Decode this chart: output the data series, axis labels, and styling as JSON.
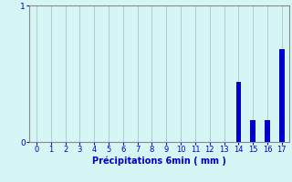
{
  "categories": [
    0,
    1,
    2,
    3,
    4,
    5,
    6,
    7,
    8,
    9,
    10,
    11,
    12,
    13,
    14,
    15,
    16,
    17
  ],
  "values": [
    0,
    0,
    0,
    0,
    0,
    0,
    0,
    0,
    0,
    0,
    0,
    0,
    0,
    0,
    0.44,
    0.16,
    0.16,
    0.68
  ],
  "bar_color": "#0000cc",
  "bg_color": "#d6f5f5",
  "grid_color": "#aacccc",
  "axis_label_color": "#0000cc",
  "tick_color": "#0000cc",
  "spine_color": "#888888",
  "xlabel": "Précipitations 6min ( mm )",
  "ylim": [
    0,
    1.0
  ],
  "yticks": [
    0,
    1
  ],
  "xlim": [
    -0.5,
    17.5
  ],
  "bar_width": 0.35,
  "xlabel_fontsize": 7,
  "tick_fontsize": 6,
  "ytick_fontsize": 6.5
}
